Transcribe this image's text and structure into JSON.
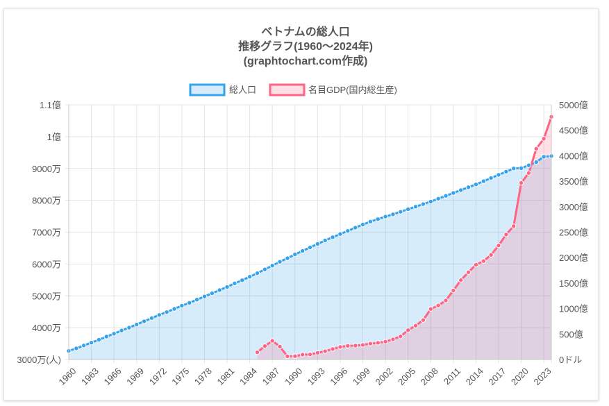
{
  "chart_data": {
    "type": "line",
    "title_lines": [
      "ベトナムの総人口",
      "推移グラフ(1960〜2024年)",
      "(graphtochart.com作成)"
    ],
    "x": [
      1960,
      1961,
      1962,
      1963,
      1964,
      1965,
      1966,
      1967,
      1968,
      1969,
      1970,
      1971,
      1972,
      1973,
      1974,
      1975,
      1976,
      1977,
      1978,
      1979,
      1980,
      1981,
      1982,
      1983,
      1984,
      1985,
      1986,
      1987,
      1988,
      1989,
      1990,
      1991,
      1992,
      1993,
      1994,
      1995,
      1996,
      1997,
      1998,
      1999,
      2000,
      2001,
      2002,
      2003,
      2004,
      2005,
      2006,
      2007,
      2008,
      2009,
      2010,
      2011,
      2012,
      2013,
      2014,
      2015,
      2016,
      2017,
      2018,
      2019,
      2020,
      2021,
      2022,
      2023,
      2024
    ],
    "x_tick_labels": [
      "1960",
      "1963",
      "1966",
      "1969",
      "1972",
      "1975",
      "1978",
      "1981",
      "1984",
      "1987",
      "1990",
      "1993",
      "1996",
      "1999",
      "2002",
      "2005",
      "2008",
      "2011",
      "2014",
      "2017",
      "2020",
      "2023"
    ],
    "y_left": {
      "min": 30000000,
      "max": 110000000,
      "tick_values": [
        30000000,
        40000000,
        50000000,
        60000000,
        70000000,
        80000000,
        90000000,
        100000000,
        110000000
      ],
      "tick_labels": [
        "3000万(人)",
        "4000万",
        "5000万",
        "6000万",
        "7000万",
        "8000万",
        "9000万",
        "1億",
        "1.1億"
      ]
    },
    "y_right": {
      "min": 0,
      "max": 500000000000,
      "tick_values": [
        0,
        50000000000,
        100000000000,
        150000000000,
        200000000000,
        250000000000,
        300000000000,
        350000000000,
        400000000000,
        450000000000,
        500000000000
      ],
      "tick_labels": [
        "0ドル",
        "500億",
        "1000億",
        "1500億",
        "2000億",
        "2500億",
        "3000億",
        "3500億",
        "4000億",
        "4500億",
        "5000億"
      ]
    },
    "grid": true,
    "legend_position": "top",
    "series": [
      {
        "name": "総人口",
        "axis": "left",
        "color": "#36a2eb",
        "fill": "rgba(54,162,235,0.2)",
        "values": [
          32700000,
          33500000,
          34400000,
          35300000,
          36200000,
          37200000,
          38100000,
          39100000,
          40000000,
          41000000,
          42000000,
          43000000,
          44000000,
          44900000,
          45900000,
          46900000,
          47800000,
          48800000,
          49800000,
          50800000,
          51800000,
          52800000,
          53900000,
          54900000,
          56000000,
          57100000,
          58300000,
          59500000,
          60700000,
          61800000,
          63000000,
          64100000,
          65200000,
          66300000,
          67400000,
          68400000,
          69400000,
          70400000,
          71400000,
          72400000,
          73300000,
          74100000,
          74900000,
          75600000,
          76400000,
          77200000,
          78000000,
          78800000,
          79600000,
          80500000,
          81400000,
          82300000,
          83200000,
          84100000,
          85000000,
          86000000,
          87000000,
          88000000,
          89000000,
          90000000,
          90100000,
          91000000,
          92000000,
          93700000,
          93900000
        ]
      },
      {
        "name": "名目GDP(国内総生産)",
        "axis": "right",
        "color": "#ff6384",
        "fill": "rgba(255,99,132,0.2)",
        "values": [
          null,
          null,
          null,
          null,
          null,
          null,
          null,
          null,
          null,
          null,
          null,
          null,
          null,
          null,
          null,
          null,
          null,
          null,
          null,
          null,
          null,
          null,
          null,
          null,
          null,
          14100000000,
          26300000000,
          36700000000,
          25400000000,
          6300000000,
          6500000000,
          9600000000,
          9900000000,
          13200000000,
          16300000000,
          20700000000,
          24700000000,
          26800000000,
          27200000000,
          28700000000,
          31200000000,
          32700000000,
          35100000000,
          39600000000,
          45400000000,
          57600000000,
          66400000000,
          77400000000,
          99100000000,
          106000000000,
          115900000000,
          135500000000,
          155800000000,
          171200000000,
          186200000000,
          193200000000,
          205300000000,
          223800000000,
          245200000000,
          261900000000,
          346600000000,
          366100000000,
          413800000000,
          433400000000,
          476400000000
        ]
      }
    ]
  }
}
